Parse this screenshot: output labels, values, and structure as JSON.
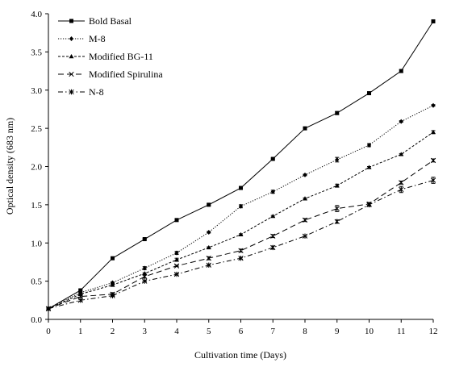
{
  "chart_data": {
    "type": "line",
    "xlabel": "Cultivation time (Days)",
    "ylabel": "Optical density (683 nm)",
    "x": [
      0,
      1,
      2,
      3,
      4,
      5,
      6,
      7,
      8,
      9,
      10,
      11,
      12
    ],
    "xlim": [
      0,
      12
    ],
    "ylim": [
      0,
      4
    ],
    "xticks": [
      "0",
      "1",
      "2",
      "3",
      "4",
      "5",
      "6",
      "7",
      "8",
      "9",
      "10",
      "11",
      "12"
    ],
    "yticks": [
      "0.0",
      "0.5",
      "1.0",
      "1.5",
      "2.0",
      "2.5",
      "3.0",
      "3.5",
      "4.0"
    ],
    "grid": false,
    "legend_position": "top-left",
    "series": [
      {
        "name": "Bold Basal",
        "values": [
          0.14,
          0.38,
          0.8,
          1.05,
          1.3,
          1.5,
          1.72,
          2.1,
          2.5,
          2.7,
          2.96,
          3.25,
          3.9
        ],
        "errors": [
          0.01,
          0.01,
          0.01,
          0.01,
          0.01,
          0.01,
          0.01,
          0.01,
          0.01,
          0.02,
          0.01,
          0.02,
          0.01
        ],
        "marker": "square",
        "line": "solid",
        "color": "#000000"
      },
      {
        "name": "M-8",
        "values": [
          0.14,
          0.35,
          0.48,
          0.67,
          0.87,
          1.14,
          1.48,
          1.67,
          1.89,
          2.09,
          2.28,
          2.59,
          2.8
        ],
        "errors": [
          0.01,
          0.01,
          0.01,
          0.02,
          0.02,
          0.01,
          0.02,
          0.02,
          0.01,
          0.03,
          0.02,
          0.01,
          0.01
        ],
        "marker": "diamond",
        "line": "dotted",
        "color": "#000000"
      },
      {
        "name": "Modified BG-11",
        "values": [
          0.14,
          0.33,
          0.45,
          0.6,
          0.78,
          0.94,
          1.11,
          1.35,
          1.58,
          1.75,
          1.99,
          2.16,
          2.45
        ],
        "errors": [
          0.01,
          0.01,
          0.01,
          0.01,
          0.02,
          0.01,
          0.01,
          0.01,
          0.01,
          0.02,
          0.01,
          0.01,
          0.02
        ],
        "marker": "triangle",
        "line": "dashed-short",
        "color": "#000000"
      },
      {
        "name": "Modified Spirulina",
        "values": [
          0.14,
          0.3,
          0.33,
          0.56,
          0.7,
          0.8,
          0.9,
          1.09,
          1.3,
          1.45,
          1.51,
          1.79,
          2.08
        ],
        "errors": [
          0.01,
          0.01,
          0.02,
          0.02,
          0.01,
          0.02,
          0.02,
          0.02,
          0.02,
          0.04,
          0.02,
          0.02,
          0.02
        ],
        "marker": "x",
        "line": "dashed-long",
        "color": "#000000"
      },
      {
        "name": "N-8",
        "values": [
          0.14,
          0.25,
          0.31,
          0.5,
          0.59,
          0.71,
          0.8,
          0.94,
          1.09,
          1.28,
          1.5,
          1.7,
          1.82
        ],
        "errors": [
          0.01,
          0.01,
          0.01,
          0.01,
          0.01,
          0.01,
          0.01,
          0.02,
          0.01,
          0.02,
          0.02,
          0.04,
          0.04
        ],
        "marker": "star",
        "line": "dash-dot",
        "color": "#000000"
      }
    ]
  }
}
